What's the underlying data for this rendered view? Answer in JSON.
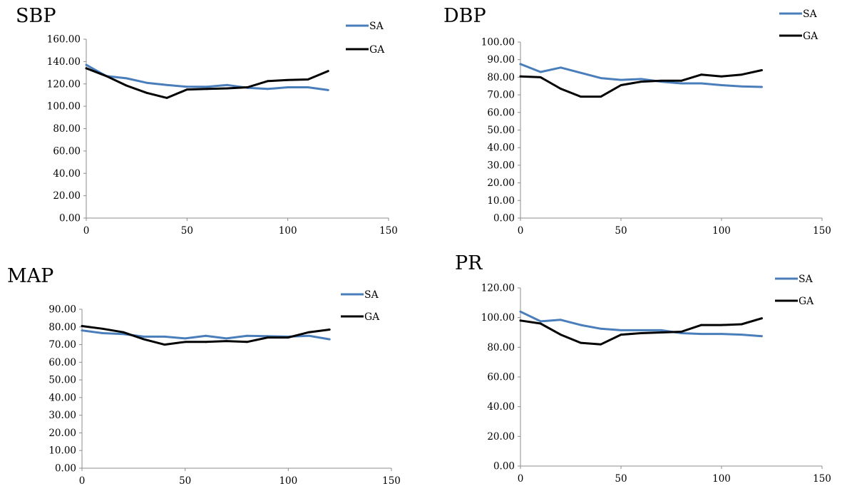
{
  "chart_data": [
    {
      "type": "line",
      "title": "SBP",
      "x": [
        0,
        10,
        20,
        30,
        40,
        50,
        60,
        70,
        80,
        90,
        100,
        110,
        120
      ],
      "xlim": [
        0,
        150
      ],
      "xticks": [
        "0",
        "50",
        "100",
        "150"
      ],
      "ylim": [
        0,
        160
      ],
      "yticks": [
        "0.00",
        "20.00",
        "40.00",
        "60.00",
        "80.00",
        "100.00",
        "120.00",
        "140.00",
        "160.00"
      ],
      "legend_position": "top-right",
      "series": [
        {
          "name": "SA",
          "color": "#4a7ebb",
          "values": [
            137,
            127,
            125,
            121,
            119,
            117.5,
            117.5,
            119,
            116.5,
            115.5,
            117,
            117,
            114.5
          ]
        },
        {
          "name": "GA",
          "color": "#000000",
          "values": [
            134,
            127,
            118.5,
            112,
            107.5,
            115,
            115.5,
            116,
            117,
            122.5,
            123.5,
            124,
            131.5
          ]
        }
      ]
    },
    {
      "type": "line",
      "title": "DBP",
      "x": [
        0,
        10,
        20,
        30,
        40,
        50,
        60,
        70,
        80,
        90,
        100,
        110,
        120
      ],
      "xlim": [
        0,
        150
      ],
      "xticks": [
        "0",
        "50",
        "100",
        "150"
      ],
      "ylim": [
        0,
        100
      ],
      "yticks": [
        "0.00",
        "10.00",
        "20.00",
        "30.00",
        "40.00",
        "50.00",
        "60.00",
        "70.00",
        "80.00",
        "90.00",
        "100.00"
      ],
      "legend_position": "top-right",
      "series": [
        {
          "name": "SA",
          "color": "#4a7ebb",
          "values": [
            87.5,
            83,
            85.5,
            82.5,
            79.5,
            78.5,
            79,
            77.5,
            76.5,
            76.5,
            75.5,
            74.8,
            74.5
          ]
        },
        {
          "name": "GA",
          "color": "#000000",
          "values": [
            80.5,
            80,
            73.5,
            69,
            69,
            75.5,
            77.5,
            78,
            78,
            81.5,
            80.5,
            81.5,
            84
          ]
        }
      ]
    },
    {
      "type": "line",
      "title": "MAP",
      "x": [
        0,
        10,
        20,
        30,
        40,
        50,
        60,
        70,
        80,
        90,
        100,
        110,
        120
      ],
      "xlim": [
        0,
        150
      ],
      "xticks": [
        "0",
        "50",
        "100",
        "150"
      ],
      "ylim": [
        0,
        90
      ],
      "yticks": [
        "0.00",
        "10.00",
        "20.00",
        "30.00",
        "40.00",
        "50.00",
        "60.00",
        "70.00",
        "80.00",
        "90.00"
      ],
      "legend_position": "right",
      "series": [
        {
          "name": "SA",
          "color": "#4a7ebb",
          "values": [
            78,
            76.5,
            76,
            74.5,
            74.5,
            73.5,
            75,
            73.5,
            75,
            74.8,
            74.5,
            75,
            73
          ]
        },
        {
          "name": "GA",
          "color": "#000000",
          "values": [
            80.5,
            79,
            77,
            73,
            70,
            71.5,
            71.5,
            72,
            71.5,
            74,
            74,
            77,
            78.5
          ]
        }
      ]
    },
    {
      "type": "line",
      "title": "PR",
      "x": [
        0,
        10,
        20,
        30,
        40,
        50,
        60,
        70,
        80,
        90,
        100,
        110,
        120
      ],
      "xlim": [
        0,
        150
      ],
      "xticks": [
        "0",
        "50",
        "100",
        "150"
      ],
      "ylim": [
        0,
        120
      ],
      "yticks": [
        "0.00",
        "20.00",
        "40.00",
        "60.00",
        "80.00",
        "100.00",
        "120.00"
      ],
      "legend_position": "top-right",
      "series": [
        {
          "name": "SA",
          "color": "#4a7ebb",
          "values": [
            104,
            97.5,
            98.5,
            95,
            92.5,
            91.5,
            91.5,
            91.5,
            89.5,
            89,
            89,
            88.5,
            87.5
          ]
        },
        {
          "name": "GA",
          "color": "#000000",
          "values": [
            98,
            96,
            88.5,
            83,
            82,
            88.5,
            89.5,
            90,
            90.5,
            95,
            95,
            95.5,
            99.5
          ]
        }
      ]
    }
  ]
}
